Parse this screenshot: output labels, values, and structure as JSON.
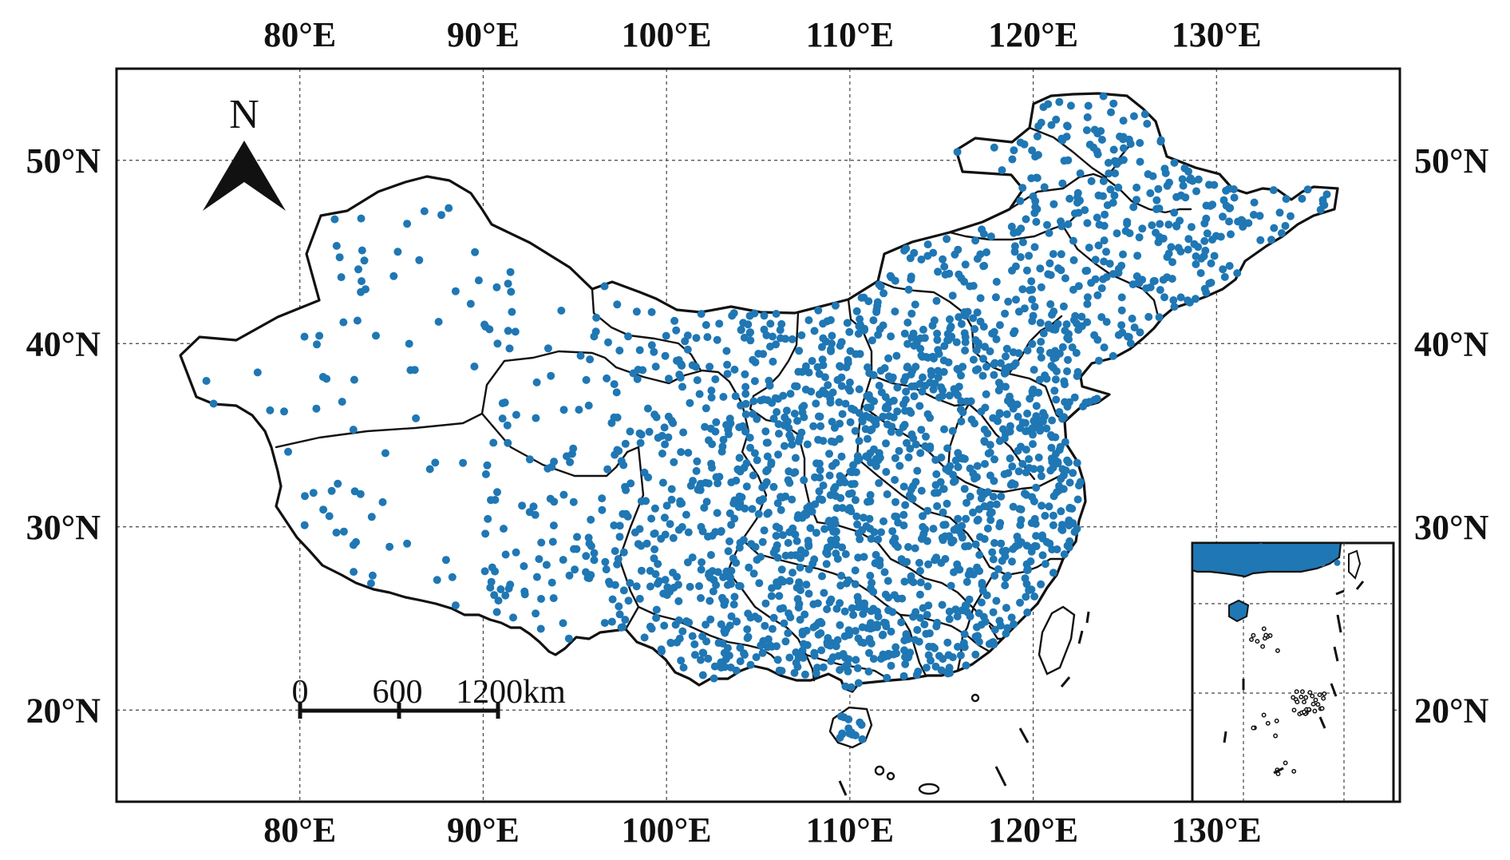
{
  "map": {
    "bounds": {
      "lon_min": 70,
      "lon_max": 140,
      "lat_min": 15,
      "lat_max": 55
    },
    "x_tick_labels": [
      {
        "lon": 80,
        "label": "80°E"
      },
      {
        "lon": 90,
        "label": "90°E"
      },
      {
        "lon": 100,
        "label": "100°E"
      },
      {
        "lon": 110,
        "label": "110°E"
      },
      {
        "lon": 120,
        "label": "120°E"
      },
      {
        "lon": 130,
        "label": "130°E"
      }
    ],
    "y_tick_labels": [
      {
        "lat": 20,
        "label": "20°N"
      },
      {
        "lat": 30,
        "label": "30°N"
      },
      {
        "lat": 40,
        "label": "40°N"
      },
      {
        "lat": 50,
        "label": "50°N"
      }
    ],
    "north_arrow": {
      "label": "N",
      "icon": "north-arrow-icon"
    },
    "scale_bar": {
      "labels": [
        "0",
        "600",
        "1200km"
      ],
      "km_per_segment": 600
    },
    "station_color": "#1f77b4",
    "inset": {
      "name": "South China Sea islands inset",
      "lon_range": [
        105,
        125
      ],
      "lat_range": [
        3,
        25
      ]
    }
  }
}
